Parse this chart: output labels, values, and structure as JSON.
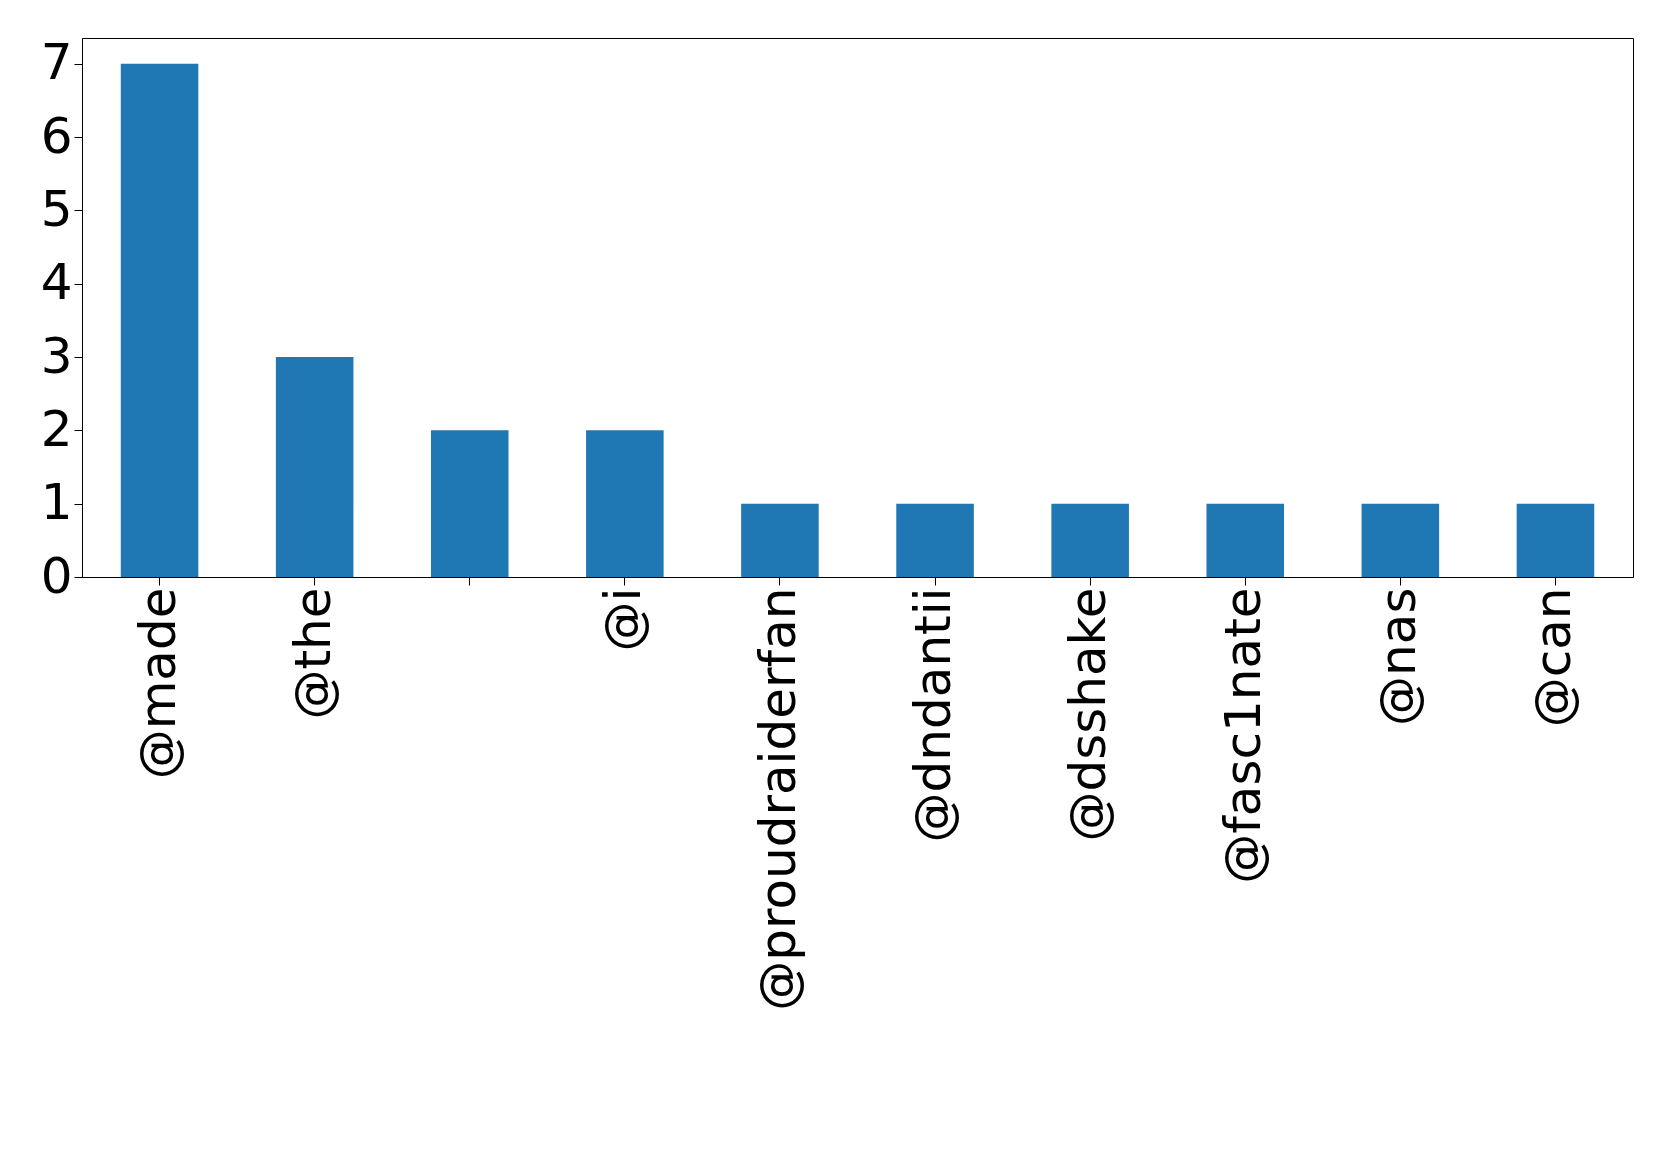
{
  "chart_data": {
    "type": "bar",
    "categories": [
      "@made",
      "@the",
      null,
      "@i",
      "@proudraiderfan",
      "@dndantii",
      "@dsshake",
      "@fasc1nate",
      "@nas",
      "@can"
    ],
    "values": [
      7,
      3,
      2,
      2,
      1,
      1,
      1,
      1,
      1,
      1
    ],
    "color": "#1f77b4",
    "ylim": [
      0,
      7.35
    ],
    "yticks": [
      0,
      1,
      2,
      3,
      4,
      5,
      6,
      7
    ],
    "grid": false
  }
}
